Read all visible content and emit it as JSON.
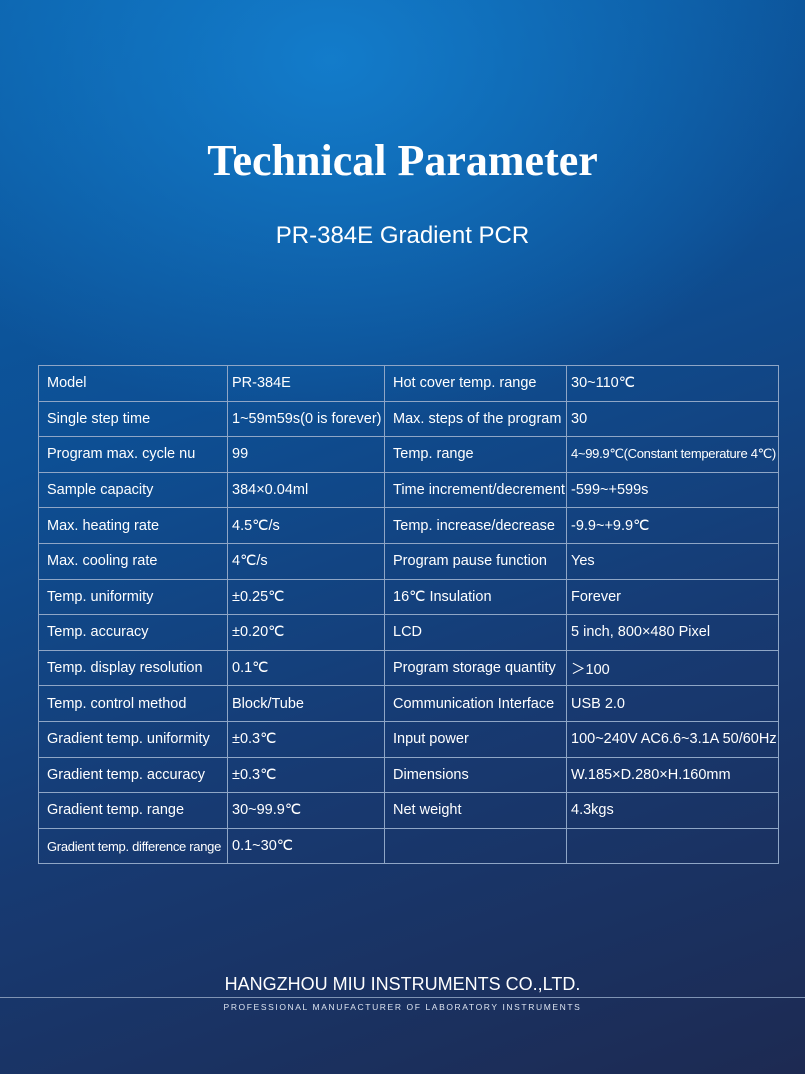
{
  "header": {
    "title": "Technical Parameter",
    "subtitle": "PR-384E Gradient PCR"
  },
  "spec_rows": [
    [
      "Model",
      "PR-384E",
      "Hot cover temp. range",
      "30~110℃"
    ],
    [
      "Single step time",
      "1~59m59s(0 is forever)",
      "Max. steps of the program",
      "30"
    ],
    [
      "Program max. cycle nu",
      "99",
      "Temp. range",
      "4~99.9℃(Constant temperature 4℃)"
    ],
    [
      "Sample capacity",
      "384×0.04ml",
      "Time increment/decrement",
      "-599~+599s"
    ],
    [
      "Max. heating rate",
      "4.5℃/s",
      "Temp. increase/decrease",
      "-9.9~+9.9℃"
    ],
    [
      "Max. cooling rate",
      "4℃/s",
      "Program pause function",
      "Yes"
    ],
    [
      "Temp. uniformity",
      "±0.25℃",
      "16℃ Insulation",
      "Forever"
    ],
    [
      "Temp. accuracy",
      "±0.20℃",
      "LCD",
      "5 inch, 800×480 Pixel"
    ],
    [
      "Temp. display resolution",
      "0.1℃",
      "Program storage quantity",
      "＞100"
    ],
    [
      "Temp. control method",
      "Block/Tube",
      "Communication Interface",
      "USB 2.0"
    ],
    [
      "Gradient temp. uniformity",
      "±0.3℃",
      "Input power",
      "100~240V AC6.6~3.1A 50/60Hz"
    ],
    [
      "Gradient temp. accuracy",
      "±0.3℃",
      "Dimensions",
      "W.185×D.280×H.160mm"
    ],
    [
      "Gradient temp. range",
      "30~99.9℃",
      "Net weight",
      "4.3kgs"
    ],
    [
      "Gradient temp. difference range",
      "0.1~30℃",
      "",
      ""
    ]
  ],
  "footer": {
    "company": "HANGZHOU MIU INSTRUMENTS CO.,LTD.",
    "tagline": "PROFESSIONAL MANUFACTURER OF LABORATORY INSTRUMENTS"
  }
}
